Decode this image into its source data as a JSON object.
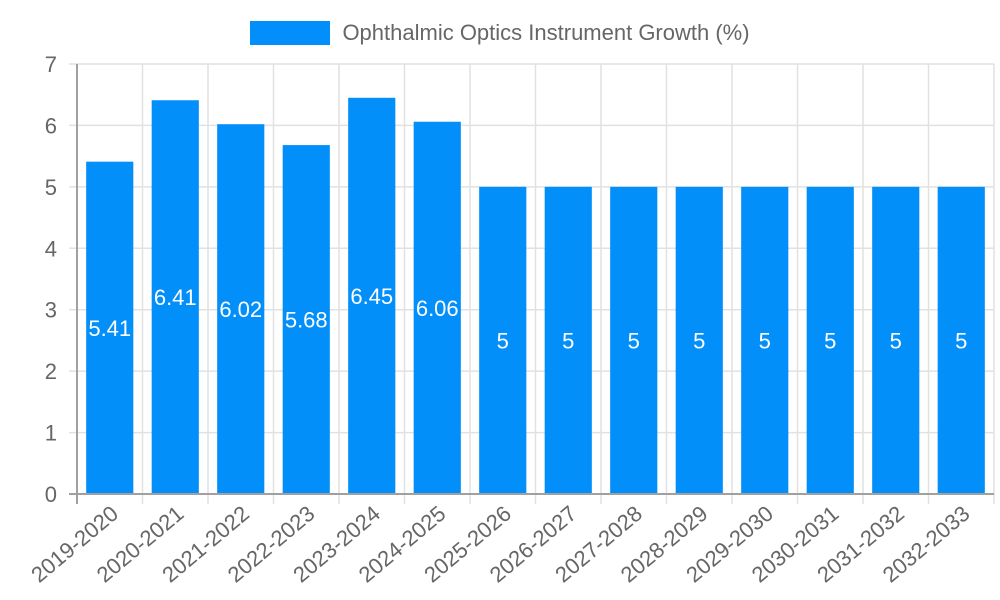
{
  "legend": {
    "label": "Ophthalmic Optics Instrument Growth (%)",
    "color": "#038ffa"
  },
  "chart_data": {
    "type": "bar",
    "title": "",
    "xlabel": "",
    "ylabel": "",
    "ylim": [
      0,
      7
    ],
    "yticks": [
      0,
      1,
      2,
      3,
      4,
      5,
      6,
      7
    ],
    "grid": true,
    "legend_position": "top",
    "categories": [
      "2019-2020",
      "2020-2021",
      "2021-2022",
      "2022-2023",
      "2023-2024",
      "2024-2025",
      "2025-2026",
      "2026-2027",
      "2027-2028",
      "2028-2029",
      "2029-2030",
      "2030-2031",
      "2031-2032",
      "2032-2033"
    ],
    "series": [
      {
        "name": "Ophthalmic Optics Instrument Growth (%)",
        "color": "#038ffa",
        "values": [
          5.41,
          6.41,
          6.02,
          5.68,
          6.45,
          6.06,
          5,
          5,
          5,
          5,
          5,
          5,
          5,
          5
        ],
        "labels": [
          "5.41",
          "6.41",
          "6.02",
          "5.68",
          "6.45",
          "6.06",
          "5",
          "5",
          "5",
          "5",
          "5",
          "5",
          "5",
          "5"
        ]
      }
    ]
  }
}
